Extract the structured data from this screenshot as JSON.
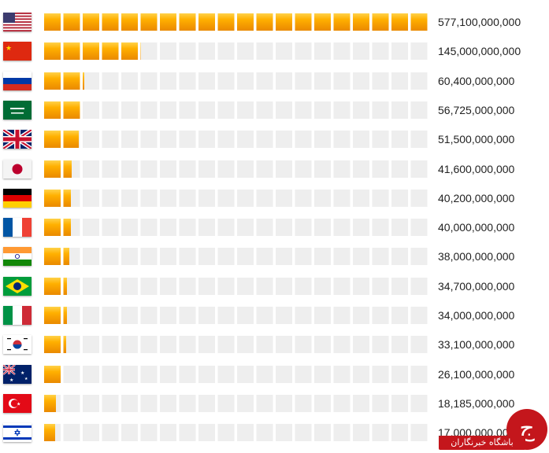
{
  "chart_data": {
    "type": "bar",
    "orientation": "horizontal",
    "categories": [
      "United States",
      "China",
      "Russia",
      "Saudi Arabia",
      "United Kingdom",
      "Japan",
      "Germany",
      "France",
      "India",
      "Brazil",
      "Italy",
      "South Korea",
      "Australia",
      "Turkey",
      "Israel"
    ],
    "flags": [
      "us-flag-icon",
      "cn-flag-icon",
      "ru-flag-icon",
      "sa-flag-icon",
      "gb-flag-icon",
      "jp-flag-icon",
      "de-flag-icon",
      "fr-flag-icon",
      "in-flag-icon",
      "br-flag-icon",
      "it-flag-icon",
      "kr-flag-icon",
      "au-flag-icon",
      "tr-flag-icon",
      "il-flag-icon"
    ],
    "values": [
      577100000000,
      145000000000,
      60400000000,
      56725000000,
      51500000000,
      41600000000,
      40200000000,
      40000000000,
      38000000000,
      34700000000,
      34000000000,
      33100000000,
      26100000000,
      18185000000,
      17000000000
    ],
    "value_labels": [
      "577,100,000,000",
      "145,000,000,000",
      "60,400,000,000",
      "56,725,000,000",
      "51,500,000,000",
      "41,600,000,000",
      "40,200,000,000",
      "40,000,000,000",
      "38,000,000,000",
      "34,700,000,000",
      "34,000,000,000",
      "33,100,000,000",
      "26,100,000,000",
      "18,185,000,000",
      "17,000,000,000"
    ],
    "xlim": [
      0,
      577100000000
    ],
    "bar_color": "#f5a300",
    "track_color": "#eeeeee",
    "grid": false,
    "legend": "none"
  },
  "watermark": {
    "text": "باشگاه خبرنگاران",
    "logo_glyph": "ج",
    "color": "#c4161c"
  }
}
